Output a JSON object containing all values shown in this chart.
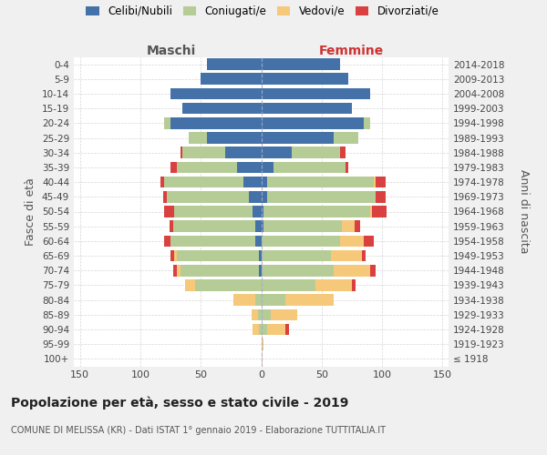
{
  "age_groups": [
    "100+",
    "95-99",
    "90-94",
    "85-89",
    "80-84",
    "75-79",
    "70-74",
    "65-69",
    "60-64",
    "55-59",
    "50-54",
    "45-49",
    "40-44",
    "35-39",
    "30-34",
    "25-29",
    "20-24",
    "15-19",
    "10-14",
    "5-9",
    "0-4"
  ],
  "birth_years": [
    "≤ 1918",
    "1919-1923",
    "1924-1928",
    "1929-1933",
    "1934-1938",
    "1939-1943",
    "1944-1948",
    "1949-1953",
    "1954-1958",
    "1959-1963",
    "1964-1968",
    "1969-1973",
    "1974-1978",
    "1979-1983",
    "1984-1988",
    "1989-1993",
    "1994-1998",
    "1999-2003",
    "2004-2008",
    "2009-2013",
    "2014-2018"
  ],
  "maschi": {
    "celibi": [
      0,
      0,
      0,
      0,
      0,
      0,
      2,
      2,
      5,
      5,
      7,
      10,
      15,
      20,
      30,
      45,
      75,
      65,
      75,
      50,
      45
    ],
    "coniugati": [
      0,
      0,
      2,
      3,
      5,
      55,
      65,
      68,
      70,
      68,
      65,
      68,
      65,
      50,
      35,
      15,
      5,
      0,
      0,
      0,
      0
    ],
    "vedovi": [
      0,
      0,
      5,
      5,
      18,
      8,
      3,
      2,
      0,
      0,
      0,
      0,
      0,
      0,
      0,
      0,
      0,
      0,
      0,
      0,
      0
    ],
    "divorziati": [
      0,
      0,
      0,
      0,
      0,
      0,
      3,
      3,
      5,
      3,
      8,
      3,
      3,
      5,
      2,
      0,
      0,
      0,
      0,
      0,
      0
    ]
  },
  "femmine": {
    "nubili": [
      0,
      0,
      0,
      0,
      0,
      0,
      0,
      0,
      0,
      2,
      2,
      5,
      5,
      10,
      25,
      60,
      85,
      75,
      90,
      72,
      65
    ],
    "coniugate": [
      0,
      0,
      5,
      8,
      20,
      45,
      60,
      58,
      65,
      65,
      88,
      90,
      88,
      60,
      40,
      20,
      5,
      0,
      0,
      0,
      0
    ],
    "vedove": [
      1,
      2,
      15,
      22,
      40,
      30,
      30,
      25,
      20,
      10,
      2,
      0,
      2,
      0,
      0,
      0,
      0,
      0,
      0,
      0,
      0
    ],
    "divorziate": [
      0,
      0,
      3,
      0,
      0,
      3,
      5,
      3,
      8,
      5,
      12,
      8,
      8,
      2,
      5,
      0,
      0,
      0,
      0,
      0,
      0
    ]
  },
  "colors": {
    "celibi": "#4472a8",
    "coniugati": "#b5cc96",
    "vedovi": "#f5c87a",
    "divorziati": "#d94040"
  },
  "title": "Popolazione per età, sesso e stato civile - 2019",
  "subtitle": "COMUNE DI MELISSA (KR) - Dati ISTAT 1° gennaio 2019 - Elaborazione TUTTITALIA.IT",
  "xlabel_left": "Maschi",
  "xlabel_right": "Femmine",
  "ylabel_left": "Fasce di età",
  "ylabel_right": "Anni di nascita",
  "xlim": 155,
  "legend_labels": [
    "Celibi/Nubili",
    "Coniugati/e",
    "Vedovi/e",
    "Divorziati/e"
  ],
  "bg_color": "#f0f0f0",
  "plot_bg_color": "#ffffff",
  "grid_color": "#cccccc"
}
